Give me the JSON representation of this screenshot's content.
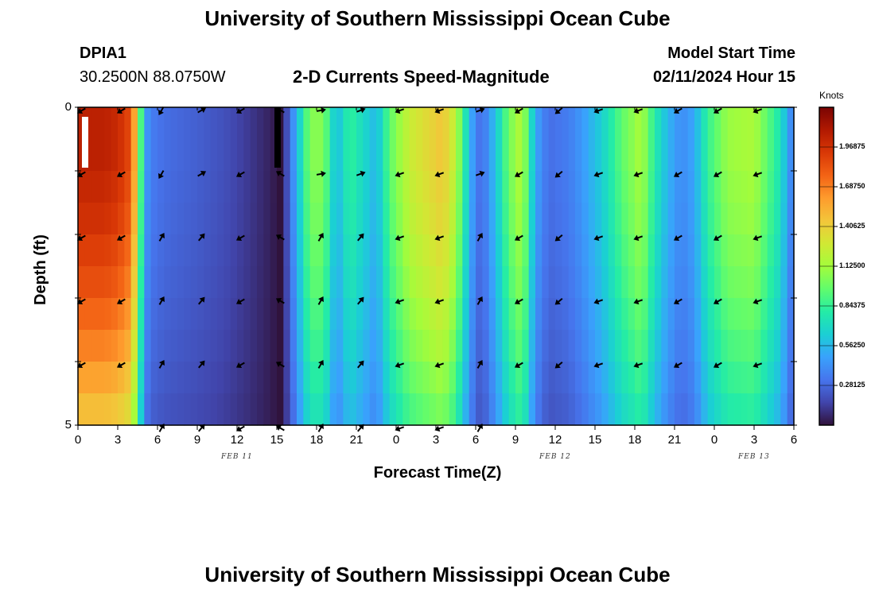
{
  "header": {
    "title": "University of Southern Mississippi Ocean Cube",
    "station_id": "DPIA1",
    "location": "30.2500N  88.0750W",
    "plot_title": "2-D Currents Speed-Magnitude",
    "model_start_label": "Model Start Time",
    "model_start_value": "02/11/2024 Hour 15",
    "footer_title": "University of Southern Mississippi Ocean Cube"
  },
  "chart_data": {
    "type": "heatmap",
    "title": "2-D Currents Speed-Magnitude",
    "xlabel": "Forecast Time(Z)",
    "ylabel": "Depth (ft)",
    "x_ticks": [
      "0",
      "3",
      "6",
      "9",
      "12",
      "15",
      "18",
      "21",
      "0",
      "3",
      "6",
      "9",
      "12",
      "15",
      "18",
      "21",
      "0",
      "3",
      "6"
    ],
    "x_hours": [
      0,
      3,
      6,
      9,
      12,
      15,
      18,
      21,
      24,
      27,
      30,
      33,
      36,
      39,
      42,
      45,
      48,
      51,
      54
    ],
    "date_labels": [
      "FEB 11",
      "FEB 12",
      "FEB 13"
    ],
    "date_label_hours": [
      12,
      36,
      51
    ],
    "y_ticks": [
      "0",
      "5"
    ],
    "ylim": [
      0,
      5
    ],
    "xlim": [
      0,
      54
    ],
    "units": "Knots",
    "colorbar_ticks": [
      "1.96875",
      "1.68750",
      "1.40625",
      "1.12500",
      "0.84375",
      "0.56250",
      "0.28125"
    ],
    "colorbar_values": [
      1.96875,
      1.6875,
      1.40625,
      1.125,
      0.84375,
      0.5625,
      0.28125
    ],
    "colorbar_range": [
      0,
      2.25
    ],
    "depth_bins": [
      0.25,
      0.75,
      1.25,
      1.75,
      2.25,
      2.75,
      3.25,
      3.75,
      4.25,
      4.75
    ],
    "speed_profile": [
      [
        0,
        2.05
      ],
      [
        2,
        2.05
      ],
      [
        3,
        2.0
      ],
      [
        4,
        1.85
      ],
      [
        4.5,
        1.3
      ],
      [
        5,
        0.5
      ],
      [
        5.5,
        0.35
      ],
      [
        6.5,
        0.3
      ],
      [
        9,
        0.25
      ],
      [
        11,
        0.2
      ],
      [
        13,
        0.12
      ],
      [
        14.5,
        0.05
      ],
      [
        15.3,
        0.0
      ],
      [
        16,
        0.3
      ],
      [
        16.5,
        0.55
      ],
      [
        17.5,
        1.05
      ],
      [
        18.5,
        1.05
      ],
      [
        19.5,
        0.55
      ],
      [
        20.5,
        0.85
      ],
      [
        21.5,
        0.7
      ],
      [
        22.5,
        0.55
      ],
      [
        23.5,
        0.95
      ],
      [
        25,
        1.25
      ],
      [
        27.5,
        1.45
      ],
      [
        28.5,
        1.2
      ],
      [
        29.5,
        0.6
      ],
      [
        30,
        0.35
      ],
      [
        30.5,
        0.3
      ],
      [
        31.5,
        0.6
      ],
      [
        32.5,
        1.0
      ],
      [
        33.5,
        1.2
      ],
      [
        34.5,
        0.5
      ],
      [
        35.5,
        0.3
      ],
      [
        37,
        0.35
      ],
      [
        38,
        0.45
      ],
      [
        39.5,
        0.65
      ],
      [
        41,
        0.95
      ],
      [
        42.5,
        1.15
      ],
      [
        43.5,
        0.8
      ],
      [
        44.5,
        0.55
      ],
      [
        45.5,
        0.4
      ],
      [
        46.5,
        0.5
      ],
      [
        47.5,
        0.85
      ],
      [
        49,
        1.1
      ],
      [
        51,
        1.15
      ],
      [
        52,
        0.95
      ],
      [
        53,
        0.75
      ],
      [
        53.6,
        0.45
      ],
      [
        54,
        0.35
      ]
    ],
    "depth_profile": [
      1.0,
      1.0,
      0.98,
      0.96,
      0.93,
      0.9,
      0.86,
      0.82,
      0.77,
      0.72
    ],
    "vector_hours": [
      0,
      3,
      6,
      9,
      12,
      15,
      18,
      21,
      24,
      27,
      30,
      33,
      36,
      39,
      42,
      45,
      48,
      51
    ],
    "vector_depths": [
      0,
      1,
      2,
      3,
      4,
      5
    ],
    "vector_angles_deg": [
      150,
      150,
      120,
      -30,
      150,
      210,
      -10,
      -20,
      160,
      160,
      -20,
      150,
      140,
      160,
      160,
      150,
      150,
      160
    ]
  },
  "marks": {
    "white_bar": {
      "hour": 0.3,
      "depth_top": 0.15,
      "depth_bottom": 0.95
    },
    "black_bar": {
      "hour": 15.0,
      "depth_top": 0.0,
      "depth_bottom": 0.95
    }
  },
  "colors": {
    "scale": [
      "#30123b",
      "#4145ab",
      "#4675ed",
      "#39a2fc",
      "#1bcfd4",
      "#24eca6",
      "#61fc6c",
      "#a4fc3b",
      "#d1e834",
      "#f3c63a",
      "#fe9b2d",
      "#f36315",
      "#d93806",
      "#b11901",
      "#7a0403"
    ],
    "arrow": "#000000",
    "frame": "#000000"
  }
}
